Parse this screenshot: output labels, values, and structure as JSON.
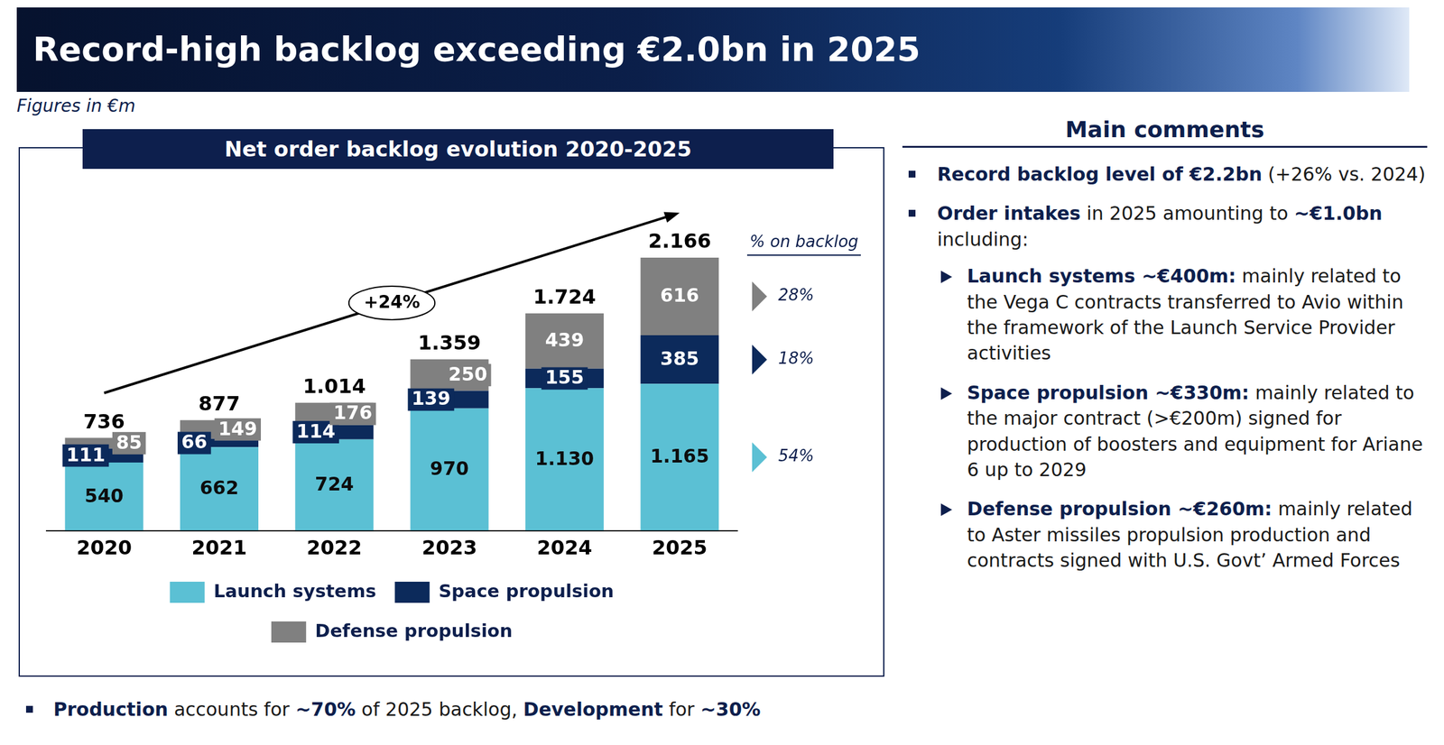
{
  "header": {
    "title": "Record-high backlog exceeding €2.0bn in 2025",
    "subtitle": "Figures in €m"
  },
  "chart_data": {
    "type": "bar",
    "title": "Net order backlog evolution 2020-2025",
    "categories": [
      "2020",
      "2021",
      "2022",
      "2023",
      "2024",
      "2025"
    ],
    "series": [
      {
        "name": "Launch systems",
        "color": "#5bc0d4",
        "values": [
          540,
          662,
          724,
          970,
          1130,
          1165
        ],
        "value_labels": [
          "540",
          "662",
          "724",
          "970",
          "1.130",
          "1.165"
        ],
        "share": 54,
        "share_label": "54%"
      },
      {
        "name": "Space propulsion",
        "color": "#0c2a5b",
        "values": [
          111,
          66,
          114,
          139,
          155,
          385
        ],
        "share": 18,
        "share_label": "18%"
      },
      {
        "name": "Defense propulsion",
        "color": "#808080",
        "values": [
          85,
          149,
          176,
          250,
          439,
          616
        ],
        "share": 28,
        "share_label": "28%"
      }
    ],
    "totals": [
      736,
      877,
      1014,
      1359,
      1724,
      2166
    ],
    "total_labels": [
      "736",
      "877",
      "1.014",
      "1.359",
      "1.724",
      "2.166"
    ],
    "share_header": "% on backlog",
    "annotations": [
      {
        "text": "+24%"
      }
    ],
    "stacked": true,
    "data_labels": true,
    "legend": "bottom",
    "grid": false,
    "tick_labels": "x",
    "ylim": [
      0,
      2600
    ]
  },
  "comments": {
    "heading": "Main comments",
    "items": [
      {
        "parts": [
          {
            "text": "Record backlog level of €2.2bn",
            "strong": true
          },
          {
            "text": " (+26% vs. 2024)"
          }
        ]
      },
      {
        "parts": [
          {
            "text": "Order intakes",
            "strong": true
          },
          {
            "text": " in 2025 amounting to "
          },
          {
            "text": "~€1.0bn",
            "strong": true
          },
          {
            "text": " including:"
          }
        ],
        "subitems": [
          {
            "parts": [
              {
                "text": "Launch systems ~€400m:",
                "strong": true
              },
              {
                "text": " mainly related to the Vega C contracts transferred to Avio within the framework of the Launch Service Provider activities"
              }
            ]
          },
          {
            "parts": [
              {
                "text": "Space propulsion ~€330m:",
                "strong": true
              },
              {
                "text": " mainly related to the major contract (>€200m) signed for production of boosters and equipment for Ariane 6 up to 2029"
              }
            ]
          },
          {
            "parts": [
              {
                "text": "Defense propulsion ~€260m:",
                "strong": true
              },
              {
                "text": " mainly related to Aster missiles propulsion production and contracts signed with U.S. Govt’ Armed Forces"
              }
            ]
          }
        ]
      }
    ]
  },
  "footnote": {
    "parts": [
      {
        "text": "Production",
        "strong": true
      },
      {
        "text": " accounts for "
      },
      {
        "text": "~70%",
        "strong": true
      },
      {
        "text": " of 2025 backlog, "
      },
      {
        "text": "Development",
        "strong": true
      },
      {
        "text": " for "
      },
      {
        "text": "~30%",
        "strong": true
      }
    ]
  }
}
